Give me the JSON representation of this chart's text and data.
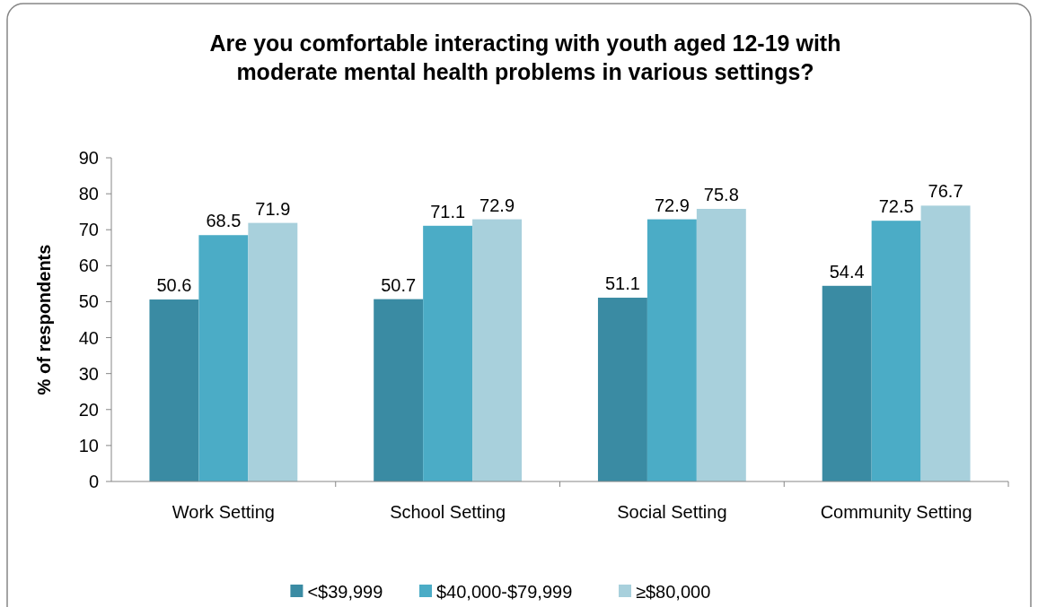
{
  "chart_data": {
    "type": "bar",
    "title": "Are you comfortable interacting with youth aged 12-19 with\nmoderate mental health problems in various settings?",
    "ylabel": "% of respondents",
    "categories": [
      "Work Setting",
      "School Setting",
      "Social Setting",
      "Community Setting"
    ],
    "series": [
      {
        "name": "<$39,999",
        "color": "#3a8ba3",
        "values": [
          50.6,
          50.7,
          51.1,
          54.4
        ]
      },
      {
        "name": "$40,000-$79,999",
        "color": "#4bacc6",
        "values": [
          68.5,
          71.1,
          72.9,
          72.5
        ]
      },
      {
        "name": "≥$80,000",
        "color": "#a8d0dc",
        "values": [
          71.9,
          72.9,
          75.8,
          76.7
        ]
      }
    ],
    "ylim": [
      0,
      90
    ],
    "yticks": [
      0,
      10,
      20,
      30,
      40,
      50,
      60,
      70,
      80,
      90
    ],
    "grid": false,
    "legend": "bottom",
    "data_labels": true
  }
}
